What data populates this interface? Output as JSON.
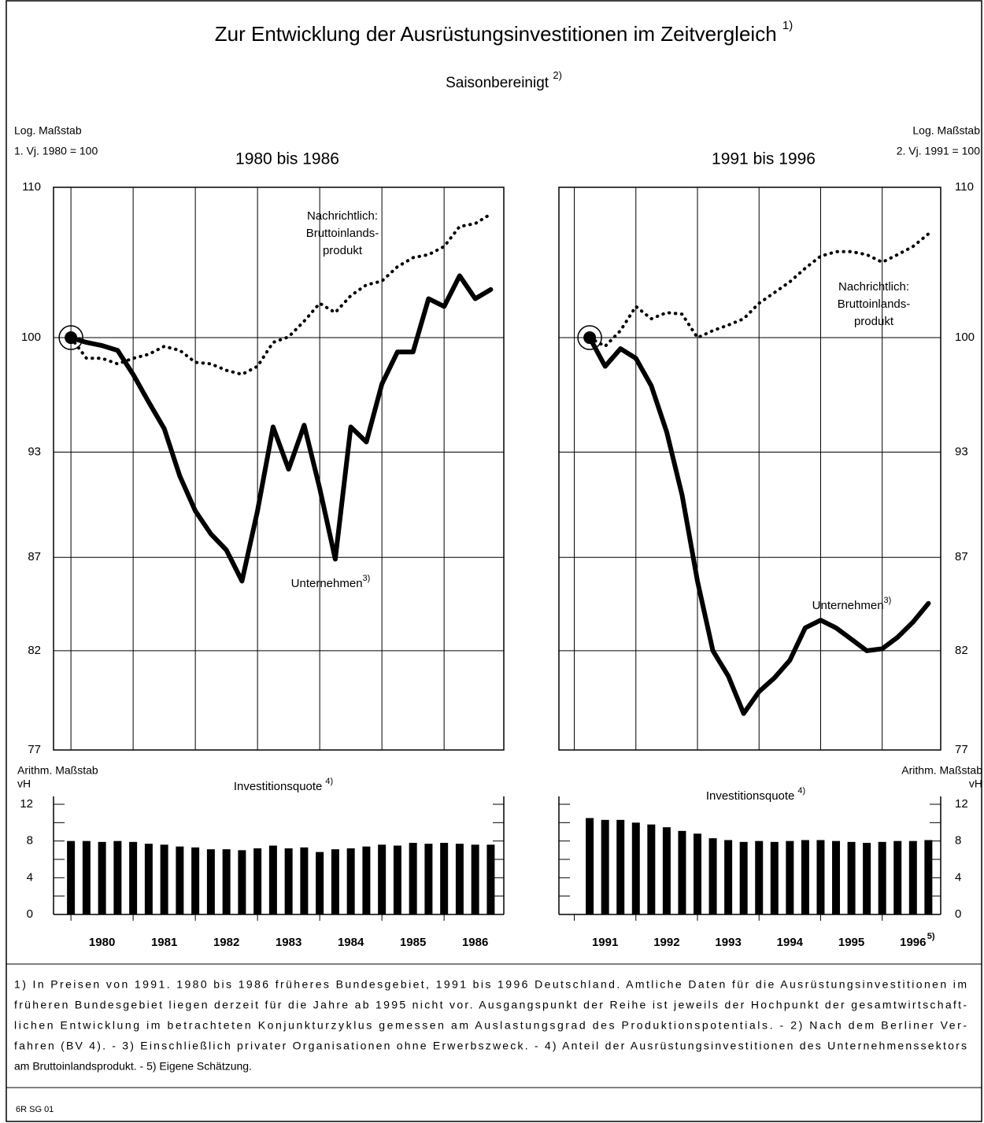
{
  "title": "Zur Entwicklung der Ausrüstungsinvestitionen im Zeitvergleich",
  "title_note": "1)",
  "subtitle": "Saisonbereinigt",
  "subtitle_note": "2)",
  "footnotes": [
    "1) In Preisen von 1991. 1980 bis 1986 früheres Bundesgebiet, 1991 bis 1996 Deutschland. Amtliche Daten für die Ausrüstungsinvestitionen im",
    "früheren Bundesgebiet liegen derzeit für die Jahre ab 1995 nicht vor.  Ausgangspunkt der Reihe ist jeweils der Hochpunkt der gesamtwirtschaft-",
    "lichen Entwicklung im betrachteten Konjunkturzyklus gemessen am Auslastungsgrad des Produktionspotentials. - 2) Nach dem Berliner Ver-",
    "fahren (BV 4). - 3) Einschließlich privater Organisationen ohne Erwerbszweck. -  4) Anteil der Ausrüstungsinvestitionen des Unternehmenssektors",
    "am Bruttoinlandsprodukt. - 5) Eigene Schätzung."
  ],
  "code": "6R SG 01",
  "chart_data": [
    {
      "type": "line",
      "title": "1980 bis 1986",
      "y_label": [
        "Log. Maßstab",
        "1. Vj. 1980 = 100"
      ],
      "y_axis_side": "left",
      "log_scale": true,
      "ylim": [
        77,
        110
      ],
      "yticks": [
        77,
        82,
        87,
        93,
        100,
        110
      ],
      "grid": true,
      "xlim": [
        1979.72,
        1986.96
      ],
      "xticks": [
        1980,
        1981,
        1982,
        1983,
        1984,
        1985,
        1986
      ],
      "x": [
        1980,
        1980.25,
        1980.5,
        1980.75,
        1981,
        1981.25,
        1981.5,
        1981.75,
        1982,
        1982.25,
        1982.5,
        1982.75,
        1983,
        1983.25,
        1983.5,
        1983.75,
        1984,
        1984.25,
        1984.5,
        1984.75,
        1985,
        1985.25,
        1985.5,
        1985.75,
        1986,
        1986.25,
        1986.5,
        1986.75
      ],
      "series": [
        {
          "name": "Unternehmen",
          "note": "3)",
          "color": "#000000",
          "style": "solid",
          "values": [
            100,
            99.7,
            99.5,
            99.2,
            97.7,
            96.0,
            94.4,
            91.6,
            89.6,
            88.3,
            87.4,
            85.7,
            89.6,
            94.5,
            92.0,
            94.6,
            90.9,
            86.9,
            94.5,
            93.6,
            97.1,
            99.1,
            99.1,
            102.5,
            102.0,
            104.0,
            102.5,
            103.1
          ]
        },
        {
          "name": [
            "Nachrichtlich:",
            "Bruttoinlands-",
            "produkt"
          ],
          "color": "#000000",
          "style": "dotted",
          "values": [
            100,
            98.7,
            98.7,
            98.35,
            98.7,
            98.95,
            99.45,
            99.2,
            98.45,
            98.35,
            97.95,
            97.7,
            98.2,
            99.7,
            100.05,
            101.05,
            102.2,
            101.6,
            102.7,
            103.4,
            103.65,
            104.6,
            105.2,
            105.4,
            105.95,
            107.3,
            107.5,
            108.15
          ]
        }
      ],
      "bar_chart": {
        "type": "bar",
        "title": "Investitionsquote",
        "title_note": "4)",
        "y_label": [
          "Arithm. Maßstab",
          "vH"
        ],
        "ylim": [
          0,
          12
        ],
        "yticks": [
          0,
          4,
          8,
          12
        ],
        "minor_yticks": [
          2,
          6,
          10
        ],
        "color": "#000000",
        "values": [
          8.0,
          8.0,
          7.9,
          8.0,
          7.9,
          7.7,
          7.6,
          7.4,
          7.3,
          7.1,
          7.1,
          7.0,
          7.2,
          7.5,
          7.2,
          7.3,
          6.8,
          7.1,
          7.2,
          7.4,
          7.6,
          7.5,
          7.8,
          7.7,
          7.8,
          7.7,
          7.6,
          7.6
        ]
      }
    },
    {
      "type": "line",
      "title": "1991 bis 1996",
      "y_label": [
        "Log. Maßstab",
        "2. Vj. 1991 = 100"
      ],
      "y_axis_side": "right",
      "log_scale": true,
      "ylim": [
        77,
        110
      ],
      "yticks": [
        77,
        82,
        87,
        93,
        100,
        110
      ],
      "grid": true,
      "xlim": [
        1990.75,
        1996.95
      ],
      "xticks": [
        1991,
        1992,
        1993,
        1994,
        1995,
        1996
      ],
      "last_xtick_note": "5)",
      "x": [
        1991.25,
        1991.5,
        1991.75,
        1992,
        1992.25,
        1992.5,
        1992.75,
        1993,
        1993.25,
        1993.5,
        1993.75,
        1994,
        1994.25,
        1994.5,
        1994.75,
        1995,
        1995.25,
        1995.5,
        1995.75,
        1996,
        1996.25,
        1996.5,
        1996.75
      ],
      "series": [
        {
          "name": "Unternehmen",
          "note": "3)",
          "color": "#000000",
          "style": "solid",
          "values": [
            100,
            98.2,
            99.3,
            98.7,
            97.0,
            94.2,
            90.5,
            85.7,
            82.0,
            80.7,
            78.8,
            79.9,
            80.6,
            81.5,
            83.2,
            83.6,
            83.2,
            82.6,
            82.0,
            82.1,
            82.7,
            83.5,
            84.5
          ]
        },
        {
          "name": [
            "Nachrichtlich:",
            "Bruttoinlands-",
            "produkt"
          ],
          "color": "#000000",
          "style": "dotted",
          "values": [
            100,
            99.45,
            100.45,
            102.0,
            101.2,
            101.6,
            101.5,
            100,
            100.45,
            100.8,
            101.2,
            102.2,
            102.9,
            103.6,
            104.5,
            105.3,
            105.6,
            105.6,
            105.4,
            104.9,
            105.4,
            105.95,
            106.8
          ]
        }
      ],
      "bar_chart": {
        "type": "bar",
        "title": "Investitionsquote",
        "title_note": "4)",
        "y_label": [
          "Arithm. Maßstab",
          "vH"
        ],
        "ylim": [
          0,
          12
        ],
        "yticks": [
          0,
          4,
          8,
          12
        ],
        "minor_yticks": [
          2,
          6,
          10
        ],
        "color": "#000000",
        "values": [
          10.5,
          10.3,
          10.3,
          10.0,
          9.8,
          9.5,
          9.1,
          8.8,
          8.3,
          8.1,
          7.9,
          8.0,
          7.9,
          8.0,
          8.1,
          8.1,
          8.0,
          7.9,
          7.8,
          7.9,
          8.0,
          8.0,
          8.1
        ]
      }
    }
  ]
}
